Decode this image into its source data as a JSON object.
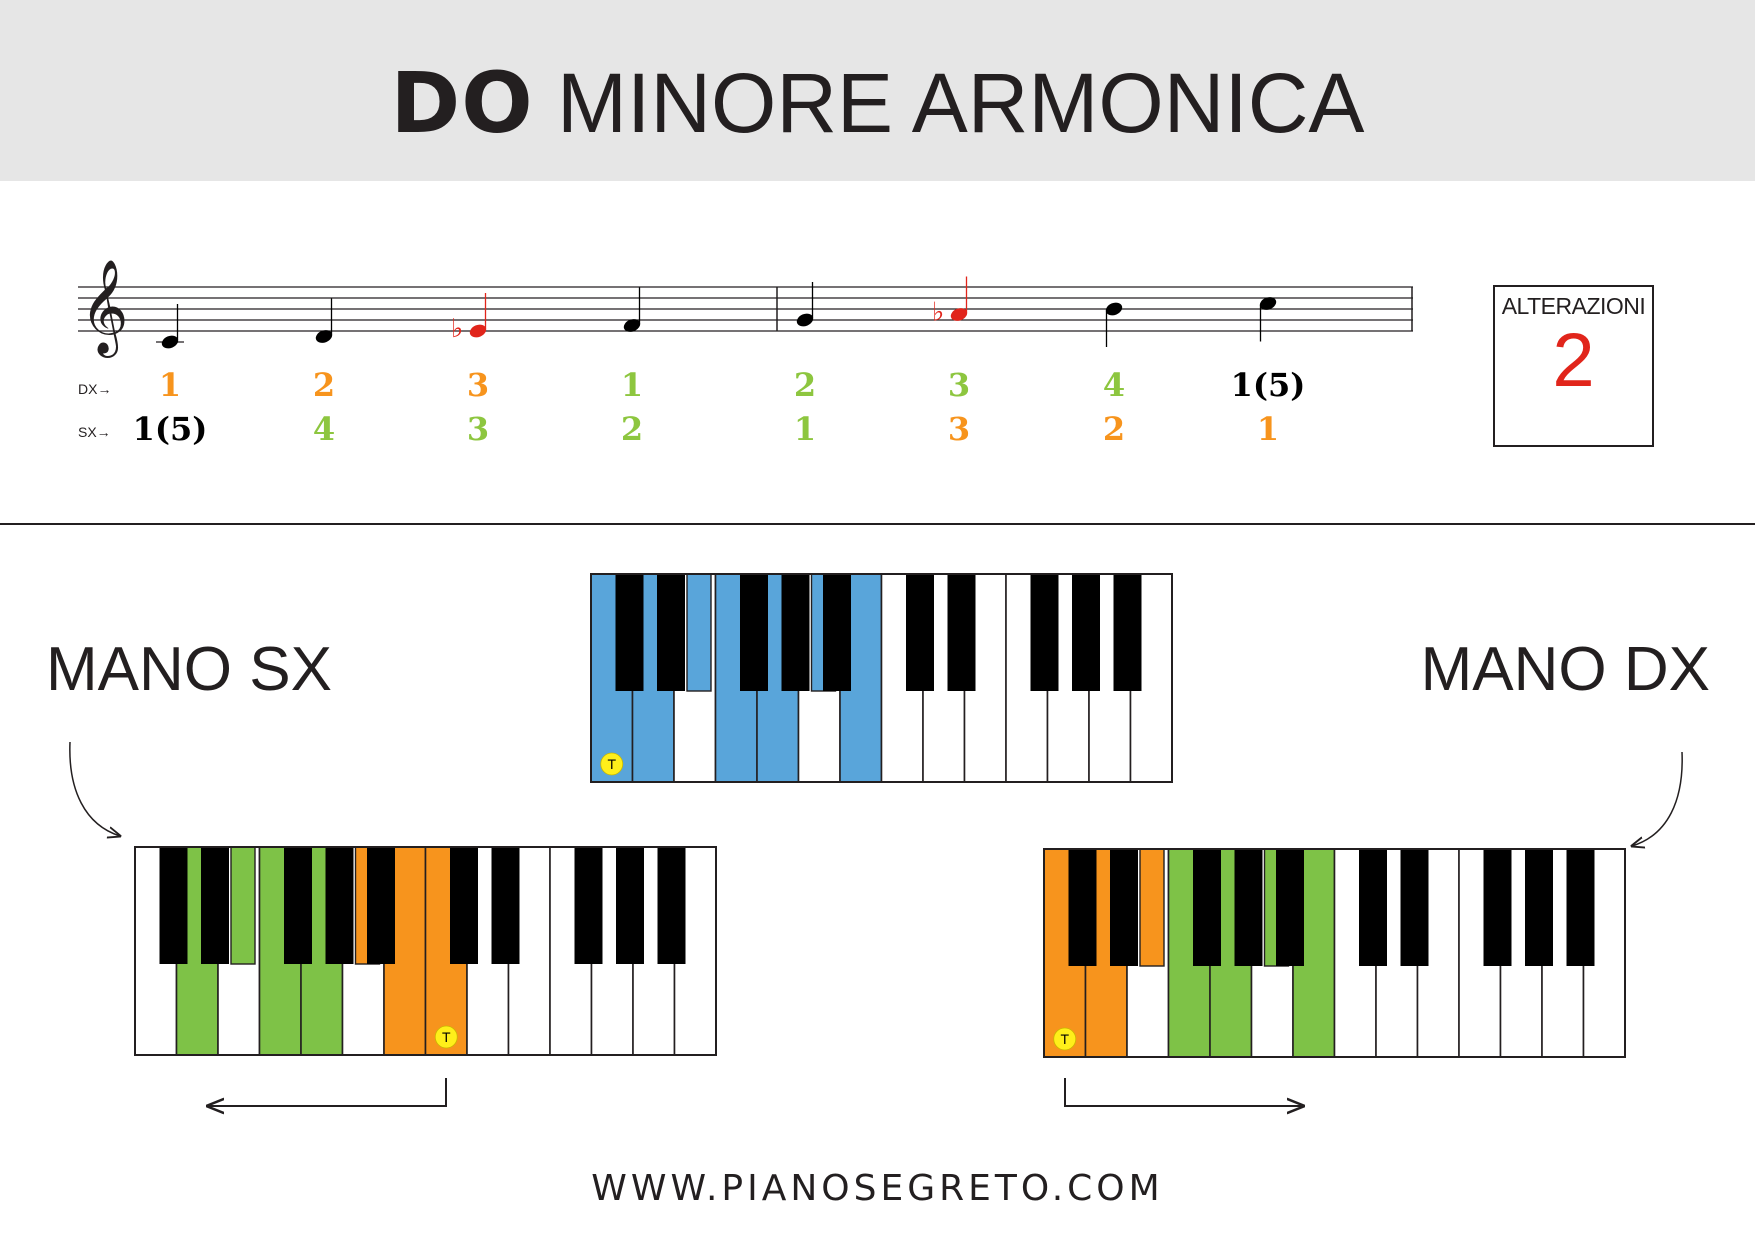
{
  "title": {
    "bold": "DO",
    "rest": "MINORE ARMONICA"
  },
  "alterazioni": {
    "label": "ALTERAZIONI",
    "value": "2"
  },
  "staff": {
    "dx_label": "DX→",
    "sx_label": "SX→",
    "notes": [
      {
        "step": 0,
        "flat": false,
        "dx": "1",
        "sx": "1(5)",
        "dx_color": "#f7941d",
        "sx_color": "#000000"
      },
      {
        "step": 1,
        "flat": false,
        "dx": "2",
        "sx": "4",
        "dx_color": "#f7941d",
        "sx_color": "#8dc63f"
      },
      {
        "step": 2,
        "flat": true,
        "dx": "3",
        "sx": "3",
        "dx_color": "#f7941d",
        "sx_color": "#8dc63f"
      },
      {
        "step": 3,
        "flat": false,
        "dx": "1",
        "sx": "2",
        "dx_color": "#8dc63f",
        "sx_color": "#8dc63f"
      },
      {
        "step": 4,
        "flat": false,
        "dx": "2",
        "sx": "1",
        "dx_color": "#8dc63f",
        "sx_color": "#8dc63f"
      },
      {
        "step": 5,
        "flat": true,
        "dx": "3",
        "sx": "3",
        "dx_color": "#8dc63f",
        "sx_color": "#f7941d"
      },
      {
        "step": 6,
        "flat": false,
        "dx": "4",
        "sx": "2",
        "dx_color": "#8dc63f",
        "sx_color": "#f7941d"
      },
      {
        "step": 7,
        "flat": false,
        "dx": "1(5)",
        "sx": "1",
        "dx_color": "#000000",
        "sx_color": "#f7941d"
      }
    ]
  },
  "hands": {
    "left": "MANO SX",
    "right": "MANO DX"
  },
  "keyboards": {
    "tonic_marker": "T",
    "center": {
      "fill": "#59a5da",
      "white_highlight": [
        0,
        1,
        3,
        4,
        6
      ],
      "black_highlight": [
        1,
        3
      ],
      "tonic_white": 0
    },
    "left": {
      "white_colors": {
        "1": "#7ec247",
        "3": "#7ec247",
        "4": "#7ec247",
        "6": "#f7941d",
        "7": "#f7941d"
      },
      "black_colors": {
        "1": "#7ec247",
        "3": "#f7941d"
      },
      "tonic_white": 7
    },
    "right": {
      "white_colors": {
        "0": "#f7941d",
        "1": "#f7941d",
        "3": "#7ec247",
        "4": "#7ec247",
        "6": "#7ec247"
      },
      "black_colors": {
        "1": "#f7941d",
        "3": "#7ec247"
      },
      "tonic_white": 0
    }
  },
  "footer": "WWW.PIANOSEGRETO.COM",
  "colors": {
    "flat_note": "#e1251b",
    "staff": "#231f20"
  }
}
